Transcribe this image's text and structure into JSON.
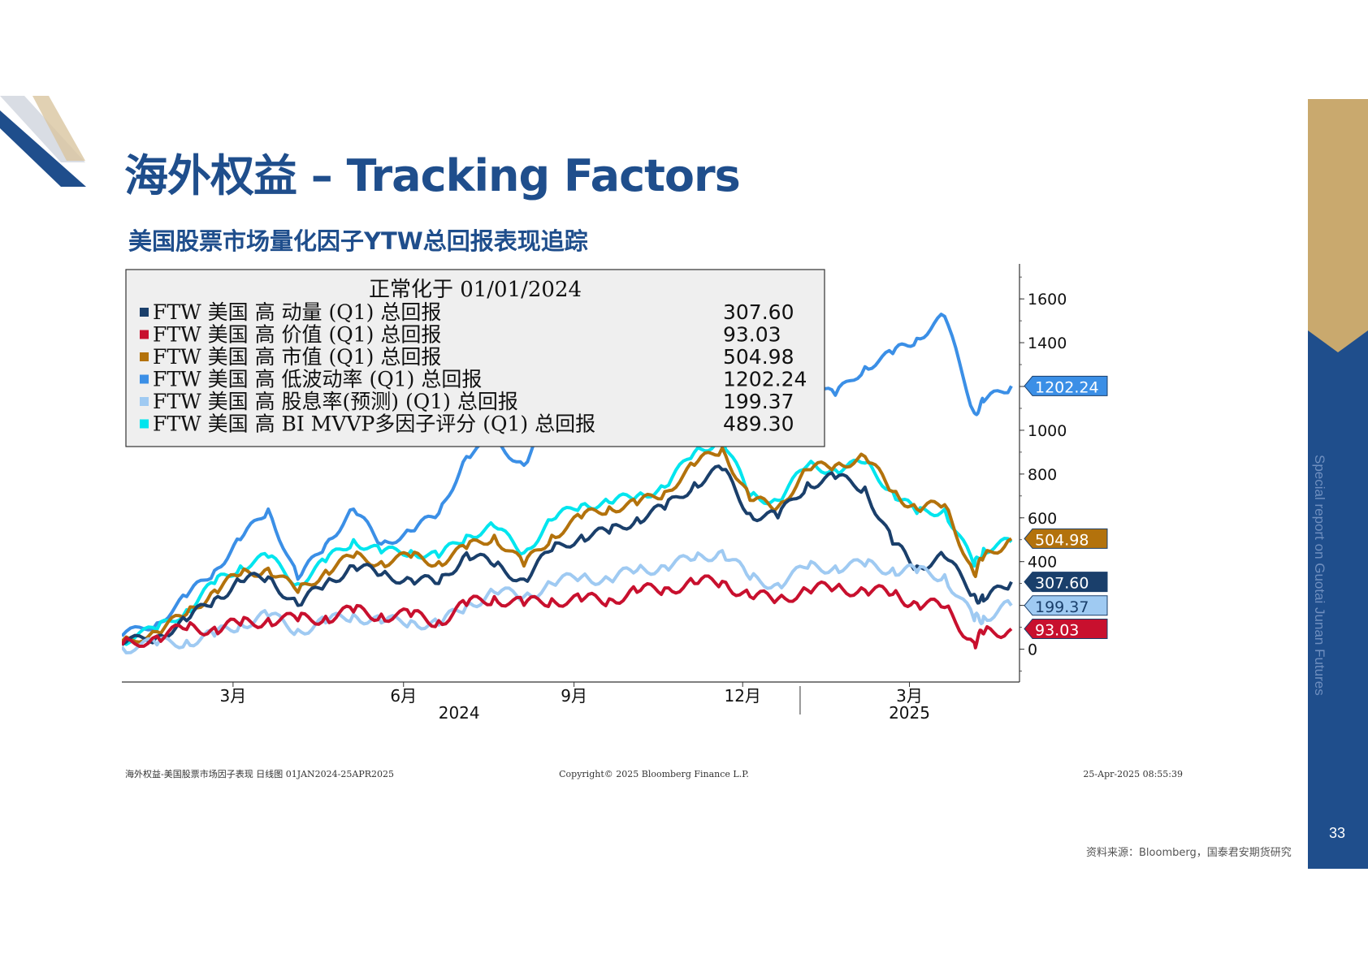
{
  "page": {
    "title": "海外权益 – Tracking Factors",
    "subtitle": "美国股票市场量化因子YTW总回报表现追踪",
    "side_text": "Special report on Guotai Junan Futures",
    "page_number": "33",
    "source": "资料来源：Bloomberg，国泰君安期货研究"
  },
  "colors": {
    "brand_blue": "#1f4e8c",
    "gold": "#c9a96e"
  },
  "chart_data": {
    "type": "line",
    "legend_title": "正常化于 01/01/2024",
    "legend_placement": "top-left",
    "x_ticks": [
      {
        "label": "3月",
        "date": "2024-03-01"
      },
      {
        "label": "6月",
        "date": "2024-06-01"
      },
      {
        "label": "9月",
        "date": "2024-09-01"
      },
      {
        "label": "12月",
        "date": "2024-12-01"
      },
      {
        "label": "3月",
        "date": "2025-03-01"
      }
    ],
    "year_labels": [
      {
        "label": "2024",
        "date": "2024-07-01"
      },
      {
        "label": "2025",
        "date": "2025-03-01"
      }
    ],
    "year_divider": "2025-01-01",
    "x_range": [
      "2024-01-01",
      "2025-04-25"
    ],
    "y_ticks": [
      0,
      200,
      400,
      600,
      800,
      1000,
      1200,
      1400,
      1600
    ],
    "y_tick_labels": [
      "0",
      "",
      "400",
      "600",
      "800",
      "1000",
      "",
      "1400",
      "1600"
    ],
    "ylim": [
      -150,
      1760
    ],
    "y_axis_side": "right",
    "footer_left": "海外权益-美国股票市场因子表现  日线图 01JAN2024-25APR2025",
    "footer_center": "Copyright© 2025 Bloomberg Finance L.P.",
    "footer_right": "25-Apr-2025 08:55:39",
    "series": [
      {
        "name": "FTW 美国 高 低波动率 (Q1) 总回报",
        "legend_value": "1202.24",
        "color": "#3b8fe6",
        "end_label_bg": "#3b8fe6",
        "end_label_fg": "#ffffff",
        "x": [
          "2024-01-01",
          "2024-01-20",
          "2024-02-05",
          "2024-02-20",
          "2024-03-05",
          "2024-03-20",
          "2024-04-05",
          "2024-04-20",
          "2024-05-05",
          "2024-05-20",
          "2024-06-05",
          "2024-06-20",
          "2024-07-05",
          "2024-07-20",
          "2024-08-05",
          "2024-08-20",
          "2024-09-05",
          "2024-09-20",
          "2024-10-05",
          "2024-10-20",
          "2024-11-05",
          "2024-11-20",
          "2024-12-05",
          "2024-12-20",
          "2025-01-05",
          "2025-01-20",
          "2025-02-05",
          "2025-02-20",
          "2025-03-05",
          "2025-03-20",
          "2025-04-05",
          "2025-04-10",
          "2025-04-25"
        ],
        "y": [
          60,
          120,
          240,
          360,
          500,
          640,
          320,
          480,
          640,
          480,
          540,
          620,
          880,
          950,
          840,
          1100,
          1180,
          1230,
          1280,
          1420,
          1350,
          1530,
          1170,
          1050,
          1200,
          1160,
          1290,
          1350,
          1420,
          1520,
          1080,
          1130,
          1202.24
        ]
      },
      {
        "name": "FTW 美国 高 BI MVVP多因子评分 (Q1) 总回报",
        "legend_value": "489.30",
        "color": "#00e5ee",
        "end_label_bg": "#00e5ee",
        "end_label_fg": "#ffffff",
        "x": [
          "2024-01-01",
          "2024-01-20",
          "2024-02-05",
          "2024-02-20",
          "2024-03-05",
          "2024-03-20",
          "2024-04-05",
          "2024-04-20",
          "2024-05-05",
          "2024-05-20",
          "2024-06-05",
          "2024-06-20",
          "2024-07-05",
          "2024-07-20",
          "2024-08-05",
          "2024-08-20",
          "2024-09-05",
          "2024-09-20",
          "2024-10-05",
          "2024-10-20",
          "2024-11-05",
          "2024-11-20",
          "2024-12-05",
          "2024-12-20",
          "2025-01-05",
          "2025-01-20",
          "2025-02-05",
          "2025-02-20",
          "2025-03-05",
          "2025-03-20",
          "2025-04-05",
          "2025-04-10",
          "2025-04-25"
        ],
        "y": [
          40,
          90,
          180,
          300,
          380,
          420,
          300,
          400,
          500,
          440,
          450,
          420,
          520,
          560,
          440,
          590,
          660,
          670,
          700,
          740,
          900,
          960,
          700,
          680,
          840,
          820,
          850,
          720,
          620,
          640,
          380,
          460,
          489.3
        ]
      },
      {
        "name": "FTW 美国 高 市值 (Q1) 总回报",
        "legend_value": "504.98",
        "color": "#b3720c",
        "end_label_bg": "#b3720c",
        "end_label_fg": "#ffffff",
        "x": [
          "2024-01-01",
          "2024-01-20",
          "2024-02-05",
          "2024-02-20",
          "2024-03-05",
          "2024-03-20",
          "2024-04-05",
          "2024-04-20",
          "2024-05-05",
          "2024-05-20",
          "2024-06-05",
          "2024-06-20",
          "2024-07-05",
          "2024-07-20",
          "2024-08-05",
          "2024-08-20",
          "2024-09-05",
          "2024-09-20",
          "2024-10-05",
          "2024-10-20",
          "2024-11-05",
          "2024-11-20",
          "2024-12-05",
          "2024-12-20",
          "2025-01-05",
          "2025-01-20",
          "2025-02-05",
          "2025-02-20",
          "2025-03-05",
          "2025-03-20",
          "2025-04-05",
          "2025-04-10",
          "2025-04-25"
        ],
        "y": [
          35,
          80,
          160,
          270,
          340,
          370,
          260,
          360,
          420,
          400,
          420,
          400,
          460,
          520,
          380,
          520,
          600,
          650,
          660,
          720,
          840,
          920,
          680,
          650,
          820,
          840,
          880,
          720,
          640,
          660,
          340,
          420,
          504.98
        ]
      },
      {
        "name": "FTW 美国 高 动量 (Q1) 总回报",
        "legend_value": "307.60",
        "color": "#1a3f6b",
        "end_label_bg": "#1a3f6b",
        "end_label_fg": "#ffffff",
        "x": [
          "2024-01-01",
          "2024-01-20",
          "2024-02-05",
          "2024-02-20",
          "2024-03-05",
          "2024-03-20",
          "2024-04-05",
          "2024-04-20",
          "2024-05-05",
          "2024-05-20",
          "2024-06-05",
          "2024-06-20",
          "2024-07-05",
          "2024-07-20",
          "2024-08-05",
          "2024-08-20",
          "2024-09-05",
          "2024-09-20",
          "2024-10-05",
          "2024-10-20",
          "2024-11-05",
          "2024-11-20",
          "2024-12-05",
          "2024-12-20",
          "2025-01-05",
          "2025-01-20",
          "2025-02-05",
          "2025-02-20",
          "2025-03-05",
          "2025-03-20",
          "2025-04-05",
          "2025-04-10",
          "2025-04-25"
        ],
        "y": [
          20,
          60,
          130,
          230,
          310,
          330,
          200,
          300,
          380,
          340,
          320,
          300,
          440,
          380,
          320,
          450,
          520,
          530,
          600,
          640,
          760,
          820,
          620,
          600,
          760,
          780,
          740,
          480,
          380,
          420,
          250,
          220,
          307.6
        ]
      },
      {
        "name": "FTW 美国 高 股息率(预测) (Q1) 总回报",
        "legend_value": "199.37",
        "color": "#9fcaf2",
        "end_label_bg": "#9fcaf2",
        "end_label_fg": "#1a3f6b",
        "x": [
          "2024-01-01",
          "2024-01-20",
          "2024-02-05",
          "2024-02-20",
          "2024-03-05",
          "2024-03-20",
          "2024-04-05",
          "2024-04-20",
          "2024-05-05",
          "2024-05-20",
          "2024-06-05",
          "2024-06-20",
          "2024-07-05",
          "2024-07-20",
          "2024-08-05",
          "2024-08-20",
          "2024-09-05",
          "2024-09-20",
          "2024-10-05",
          "2024-10-20",
          "2024-11-05",
          "2024-11-20",
          "2024-12-05",
          "2024-12-20",
          "2025-01-05",
          "2025-01-20",
          "2025-02-05",
          "2025-02-20",
          "2025-03-05",
          "2025-03-20",
          "2025-04-05",
          "2025-04-10",
          "2025-04-25"
        ],
        "y": [
          10,
          20,
          40,
          60,
          120,
          150,
          90,
          120,
          160,
          120,
          130,
          110,
          200,
          260,
          240,
          300,
          330,
          320,
          360,
          380,
          410,
          450,
          320,
          300,
          370,
          380,
          380,
          370,
          350,
          340,
          130,
          150,
          199.37
        ]
      },
      {
        "name": "FTW 美国 高 价值 (Q1) 总回报",
        "legend_value": "93.03",
        "color": "#c8102e",
        "end_label_bg": "#c8102e",
        "end_label_fg": "#ffffff",
        "x": [
          "2024-01-01",
          "2024-01-20",
          "2024-02-05",
          "2024-02-20",
          "2024-03-05",
          "2024-03-20",
          "2024-04-05",
          "2024-04-20",
          "2024-05-05",
          "2024-05-20",
          "2024-06-05",
          "2024-06-20",
          "2024-07-05",
          "2024-07-20",
          "2024-08-05",
          "2024-08-20",
          "2024-09-05",
          "2024-09-20",
          "2024-10-05",
          "2024-10-20",
          "2024-11-05",
          "2024-11-20",
          "2024-12-05",
          "2024-12-20",
          "2025-01-05",
          "2025-01-20",
          "2025-02-05",
          "2025-02-20",
          "2025-03-05",
          "2025-03-20",
          "2025-04-05",
          "2025-04-10",
          "2025-04-25"
        ],
        "y": [
          20,
          60,
          90,
          100,
          110,
          140,
          130,
          150,
          170,
          160,
          150,
          130,
          200,
          240,
          200,
          230,
          220,
          230,
          260,
          280,
          300,
          310,
          240,
          230,
          270,
          280,
          270,
          250,
          210,
          190,
          30,
          70,
          93.03
        ]
      }
    ],
    "legend_order": [
      3,
      5,
      2,
      0,
      4,
      1
    ],
    "end_label_order": [
      0,
      2,
      3,
      4,
      5
    ]
  }
}
